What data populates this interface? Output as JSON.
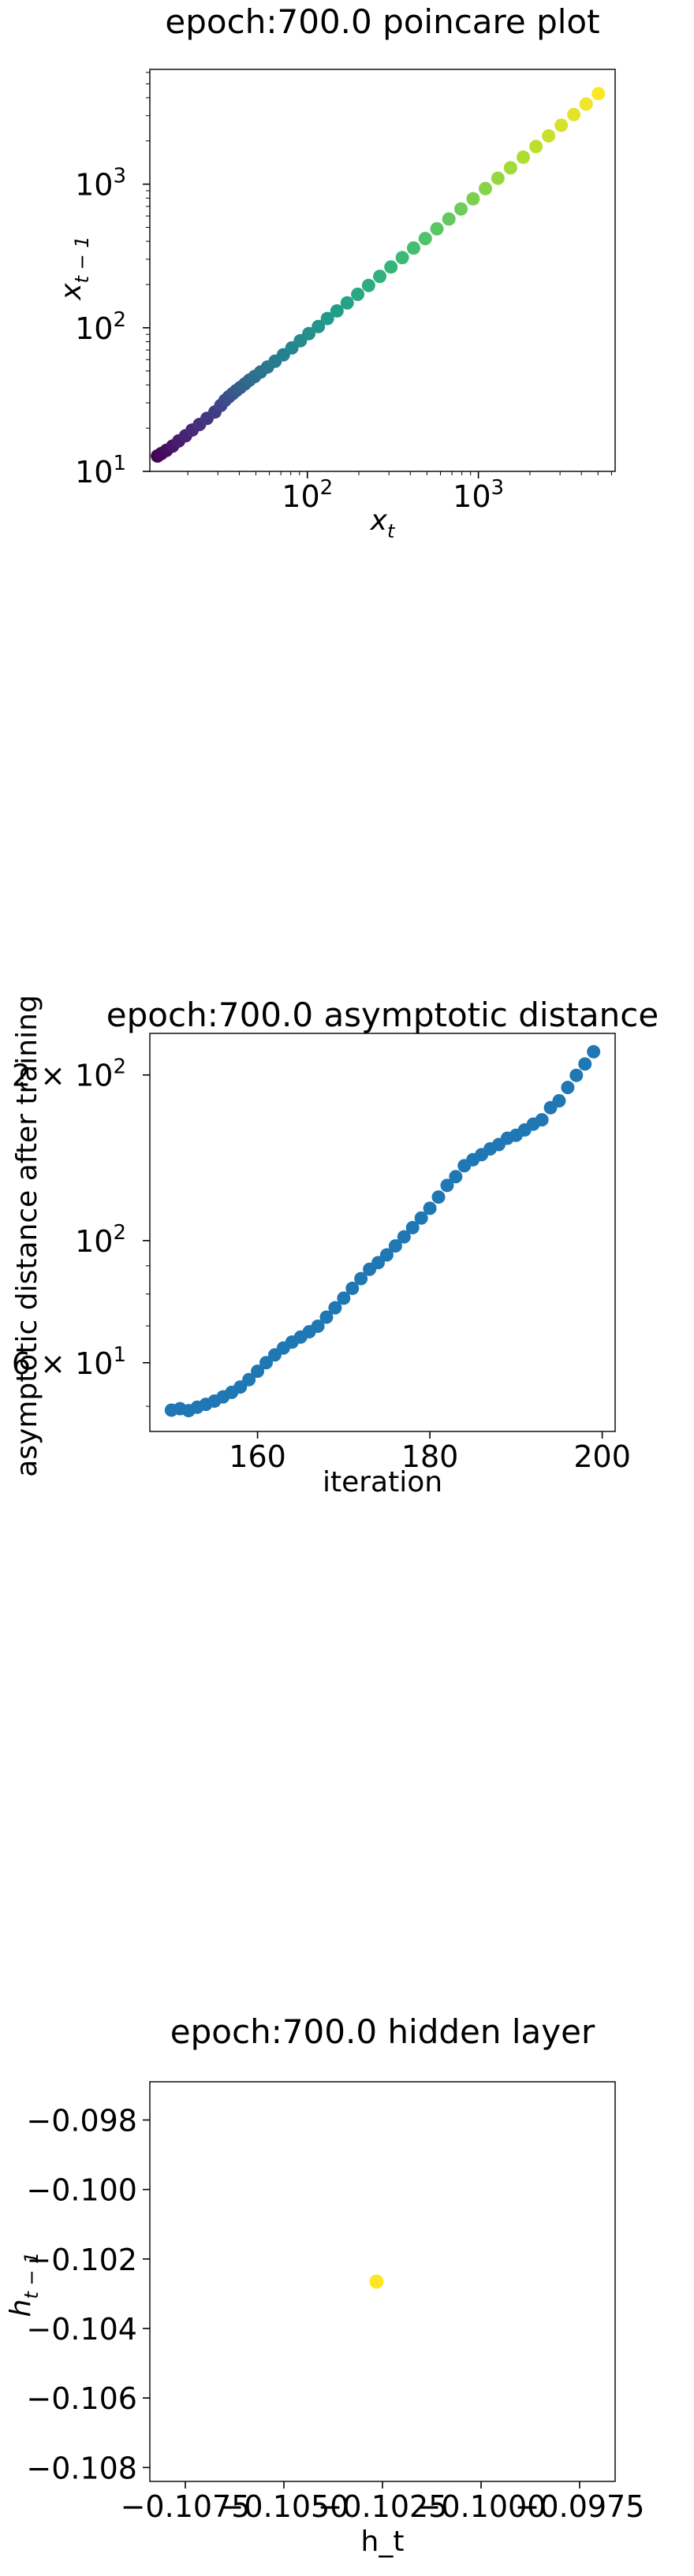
{
  "charts": [
    {
      "id": "poincare",
      "title": "epoch:700.0 poincare plot",
      "xlabel": "x",
      "xlabel_sub": "t",
      "ylabel": "x",
      "ylabel_sub": "t − 1",
      "xticks": [
        {
          "v": 100,
          "base": "10",
          "exp": "2"
        },
        {
          "v": 1000,
          "base": "10",
          "exp": "3"
        }
      ],
      "yticks": [
        {
          "v": 10,
          "base": "10",
          "exp": "1"
        },
        {
          "v": 100,
          "base": "10",
          "exp": "2"
        },
        {
          "v": 1000,
          "base": "10",
          "exp": "3"
        }
      ]
    },
    {
      "id": "asymptotic",
      "title": "epoch:700.0 asymptotic distance",
      "xlabel": "iteration",
      "ylabel": "asymptotic distance after training",
      "xticks": [
        "160",
        "180",
        "200"
      ],
      "yticks": [
        {
          "v": 60,
          "pre": "6 × 10",
          "exp": "1"
        },
        {
          "v": 100,
          "pre": "10",
          "exp": "2"
        },
        {
          "v": 200,
          "pre": "2 × 10",
          "exp": "2"
        }
      ]
    },
    {
      "id": "hidden",
      "title": "epoch:700.0 hidden layer",
      "xlabel": "h_t",
      "ylabel": "h",
      "ylabel_sub": "t − 1",
      "xticks": [
        "−0.1075",
        "−0.1050",
        "−0.1025",
        "−0.1000",
        "−0.0975"
      ],
      "yticks": [
        "−0.098",
        "−0.100",
        "−0.102",
        "−0.104",
        "−0.106",
        "−0.108"
      ]
    }
  ],
  "chart_data": [
    {
      "type": "scatter",
      "title": "epoch:700.0 poincare plot",
      "xlabel": "x_t",
      "ylabel": "x_{t-1}",
      "xscale": "log",
      "yscale": "log",
      "xlim": [
        12,
        6300
      ],
      "ylim": [
        10,
        6300
      ],
      "colormap": "viridis",
      "x": [
        13.3,
        14.0,
        15.0,
        16.3,
        17.7,
        19.4,
        21.2,
        23.4,
        25.9,
        28.8,
        31.2,
        33.0,
        34.7,
        36.5,
        38.4,
        40.6,
        43.1,
        45.8,
        49.2,
        53.3,
        58.5,
        64.8,
        72.4,
        81.2,
        91.0,
        102,
        116,
        131,
        149,
        171,
        197,
        228,
        265,
        308,
        359,
        418,
        489,
        572,
        672,
        791,
        931,
        1099,
        1300,
        1541,
        1829,
        2170,
        2573,
        3051,
        3611,
        4267,
        5030
      ],
      "y": [
        12.8,
        13.3,
        14.0,
        15.0,
        16.3,
        17.7,
        19.4,
        21.2,
        23.4,
        25.9,
        28.8,
        31.2,
        33.0,
        34.7,
        36.5,
        38.4,
        40.6,
        43.1,
        45.8,
        49.2,
        53.3,
        58.5,
        64.8,
        72.4,
        81.2,
        91.0,
        102,
        116,
        131,
        149,
        171,
        197,
        228,
        265,
        308,
        359,
        418,
        489,
        572,
        672,
        791,
        931,
        1099,
        1300,
        1541,
        1829,
        2170,
        2573,
        3051,
        3611,
        4267
      ]
    },
    {
      "type": "scatter",
      "title": "epoch:700.0 asymptotic distance",
      "xlabel": "iteration",
      "ylabel": "asymptotic distance after training",
      "yscale": "log",
      "xlim": [
        147.5,
        201.5
      ],
      "ylim": [
        45,
        238
      ],
      "color": "#1f77b4",
      "x": [
        150,
        151,
        152,
        153,
        154,
        155,
        156,
        157,
        158,
        159,
        160,
        161,
        162,
        163,
        164,
        165,
        166,
        167,
        168,
        169,
        170,
        171,
        172,
        173,
        174,
        175,
        176,
        177,
        178,
        179,
        180,
        181,
        182,
        183,
        184,
        185,
        186,
        187,
        188,
        189,
        190,
        191,
        192,
        193,
        194,
        195,
        196,
        197,
        198,
        199
      ],
      "y": [
        49.2,
        49.5,
        49.1,
        49.8,
        50.4,
        51.1,
        52.0,
        53.0,
        54.2,
        55.9,
        57.9,
        60.0,
        62.0,
        63.8,
        65.4,
        66.8,
        68.3,
        69.9,
        72.6,
        75.5,
        78.6,
        81.9,
        85.3,
        88.7,
        91.2,
        94.2,
        97.8,
        101.6,
        105.6,
        109.9,
        114.5,
        120.0,
        126.0,
        130.7,
        136.8,
        140.3,
        143.3,
        146.8,
        149.5,
        153.5,
        155.4,
        158.9,
        162.8,
        165.8,
        174.4,
        179.5,
        189.8,
        199.7,
        209.4,
        220.4
      ]
    },
    {
      "type": "scatter",
      "title": "epoch:700.0 hidden layer",
      "xlabel": "h_t",
      "ylabel": "h_{t-1}",
      "xlim": [
        -0.1084,
        -0.0966
      ],
      "ylim": [
        -0.1084,
        -0.0969
      ],
      "color": "#fde725",
      "x": [
        -0.10265
      ],
      "y": [
        -0.10265
      ]
    }
  ]
}
